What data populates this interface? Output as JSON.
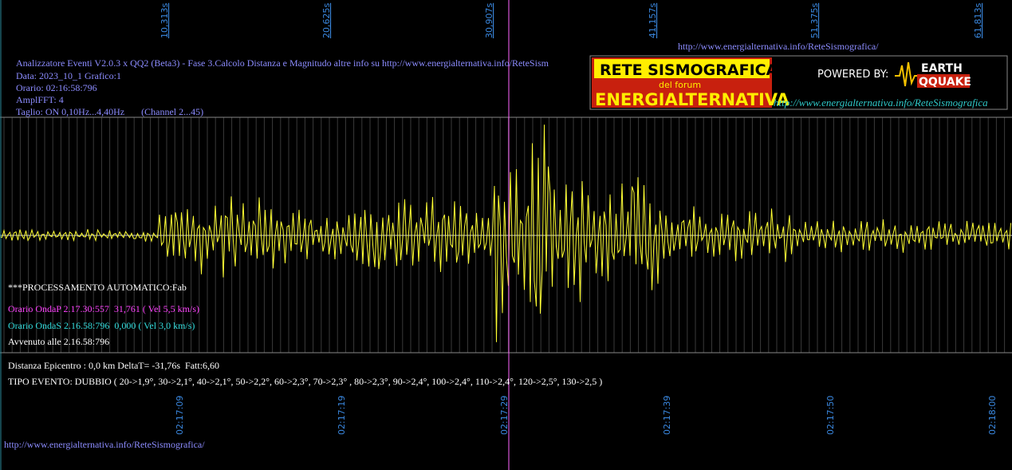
{
  "top_url": "http://www.energialternativa.info/ReteSismografica/",
  "info": {
    "lines": [
      "Analizzatore Eventi V2.0.3 x QQ2 (Beta3) - Fase 3.Calcolo Distanza e Magnitudo altre info su http://www.energialternativa.info/ReteSism",
      "Data: 2023_10_1 Grafico:1",
      "Orario: 02:16:58:796",
      "AmplFFT: 4",
      "Taglio: ON 0,10Hz...4,40Hz       (Channel 2...45)"
    ]
  },
  "logo": {
    "title": "RETE SISMOGRAFICA",
    "subtitle": "del forum",
    "name": "ENERGIALTERNATIVA",
    "powered": "POWERED BY:",
    "brand_top": "EARTH",
    "brand_bottom": "QQUAKE",
    "url": "http://www.energialternativa.info/ReteSismografica"
  },
  "time_axis": {
    "seconds": [
      "10,313s",
      "20,625s",
      "30,907s",
      "41,157s",
      "51,375s",
      "61,813s"
    ],
    "clock": [
      "02:17:09",
      "02:17:19",
      "02:17:29",
      "02:17:39",
      "02:17:50",
      "02:18:00"
    ]
  },
  "processing": {
    "mode": "***PROCESSAMENTO AUTOMATICO:Fab",
    "onda_p": "Orario OndaP 2.17.30:557  31,761 ( Vel 5,5 km/s)",
    "onda_s": "Orario OndaS 2.16.58:796  0,000 ( Vel 3,0 km/s)",
    "event_time": "Avvenuto alle 2.16.58:796",
    "distance": "Distanza Epicentro : 0,0 km DeltaT= -31,76s  Fatt:6,60",
    "event_type": "TIPO EVENTO: DUBBIO ( 20->1,9°, 30->2,1°, 40->2,1°, 50->2,2°, 60->2,3°, 70->2,3° , 80->2,3°, 90->2,4°, 100->2,4°, 110->2,4°, 120->2,5°, 130->2,5 )"
  },
  "footer_url": "http://www.energialternativa.info/ReteSismografica/"
}
